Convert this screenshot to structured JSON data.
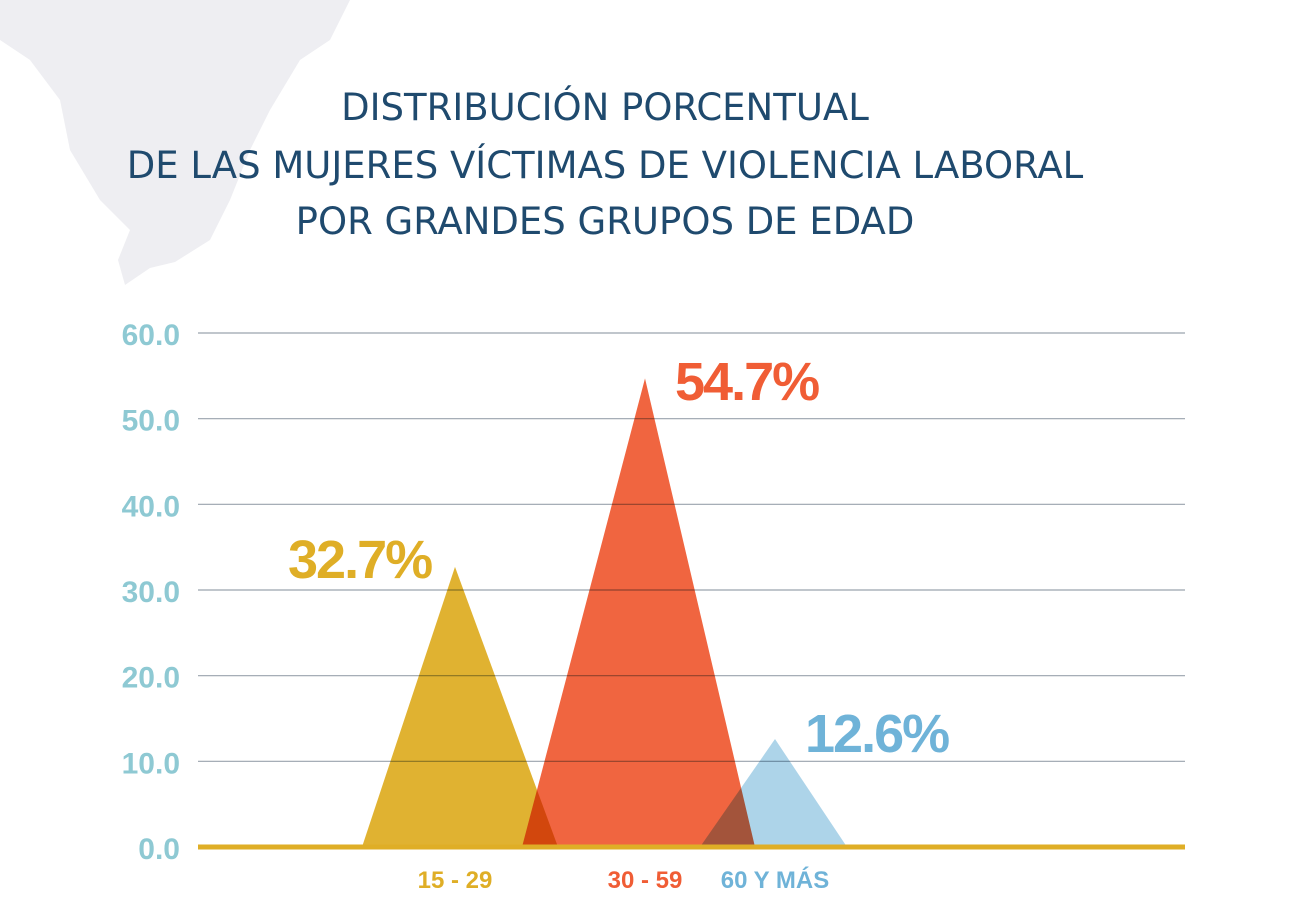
{
  "chart_data": {
    "type": "area",
    "title_lines": [
      "DISTRIBUCIÓN PORCENTUAL",
      "DE LAS  MUJERES VÍCTIMAS DE VIOLENCIA LABORAL",
      "POR GRANDES GRUPOS DE EDAD"
    ],
    "categories": [
      "15 - 29",
      "30 - 59",
      "60 Y MÁS"
    ],
    "values": [
      32.7,
      54.7,
      12.6
    ],
    "data_labels": [
      "32.7%",
      "54.7%",
      "12.6%"
    ],
    "colors": [
      "#dfae26",
      "#f05d35",
      "#a9d2e8"
    ],
    "label_colors": [
      "#dfae26",
      "#f05d35",
      "#6fb3d8"
    ],
    "yticks": [
      "0.0",
      "10.0",
      "20.0",
      "30.0",
      "40.0",
      "50.0",
      "60.0"
    ],
    "ylim": [
      0,
      60
    ],
    "grid": true,
    "axis_label_color": "#8ec9d3",
    "baseline_color": "#dfae26"
  }
}
